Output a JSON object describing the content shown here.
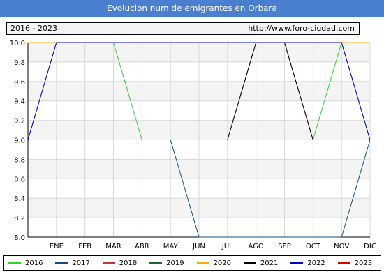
{
  "header": {
    "title": "Evolucion num de emigrantes en Orbara",
    "range_label": "2016 - 2023",
    "url_label": "http://www.foro-ciudad.com"
  },
  "colors": {
    "title_bg": "#4a7fcf",
    "plot_band": "#f4f4f4",
    "grid": "#d8d8d8"
  },
  "chart_data": {
    "type": "line",
    "title": "Evolucion num de emigrantes en Orbara",
    "xlabel": "",
    "ylabel": "",
    "x": [
      "",
      "ENE",
      "FEB",
      "MAR",
      "ABR",
      "MAY",
      "JUN",
      "JUL",
      "AGO",
      "SEP",
      "OCT",
      "NOV",
      "DIC"
    ],
    "ylim": [
      8.0,
      10.0
    ],
    "yticks": [
      "8.0",
      "8.2",
      "8.4",
      "8.6",
      "8.8",
      "9.0",
      "9.2",
      "9.4",
      "9.6",
      "9.8",
      "10.0"
    ],
    "grid": true,
    "legend_position": "bottom",
    "series": [
      {
        "name": "2016",
        "color": "#33cc33",
        "values": [
          9,
          10,
          10,
          10,
          9,
          9,
          9,
          9,
          9,
          9,
          9,
          10,
          9
        ]
      },
      {
        "name": "2017",
        "color": "#0b4f8a",
        "values": [
          9,
          9,
          9,
          9,
          9,
          9,
          8,
          8,
          8,
          8,
          8,
          8,
          9
        ]
      },
      {
        "name": "2018",
        "color": "#c0392b",
        "values": [
          9,
          9,
          9,
          9,
          9,
          9,
          9,
          9,
          10,
          10,
          9,
          9,
          9
        ]
      },
      {
        "name": "2019",
        "color": "#1a6b1a",
        "values": [
          9,
          9,
          9,
          9,
          9,
          9,
          9,
          9,
          9,
          9,
          9,
          9,
          9
        ]
      },
      {
        "name": "2020",
        "color": "#ffaa00",
        "values": [
          10,
          10,
          10,
          10,
          10,
          10,
          10,
          10,
          10,
          10,
          10,
          10,
          10
        ]
      },
      {
        "name": "2021",
        "color": "#000000",
        "values": [
          9,
          9,
          9,
          9,
          9,
          9,
          9,
          9,
          10,
          10,
          9,
          9,
          9
        ]
      },
      {
        "name": "2022",
        "color": "#0000cc",
        "values": [
          9,
          10,
          10,
          10,
          10,
          10,
          10,
          10,
          10,
          10,
          10,
          10,
          9
        ]
      },
      {
        "name": "2023",
        "color": "#dd0000",
        "values": [
          9,
          9,
          9,
          9,
          9,
          9,
          9,
          9,
          9,
          9,
          9,
          9,
          9
        ]
      }
    ]
  }
}
